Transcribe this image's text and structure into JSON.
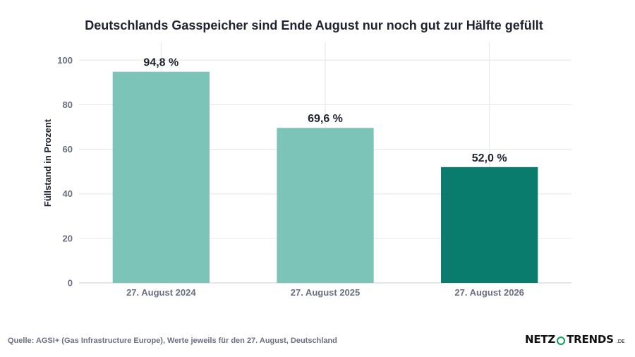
{
  "chart_data": {
    "type": "bar",
    "title": "Deutschlands Gasspeicher sind Ende August nur noch gut zur Hälfte gefüllt",
    "ylabel": "Füllstand in Prozent",
    "xlabel": "",
    "ylim": [
      0,
      108
    ],
    "yticks": [
      0,
      20,
      40,
      60,
      80,
      100
    ],
    "grid": true,
    "categories": [
      "27. August 2024",
      "27. August 2025",
      "27. August 2026"
    ],
    "values": [
      94.8,
      69.6,
      52.0
    ],
    "data_labels": [
      "94,8 %",
      "69,6 %",
      "52,0 %"
    ],
    "colors": [
      "#7cc4b8",
      "#7cc4b8",
      "#0a7c6e"
    ]
  },
  "source": "Quelle: AGSI+ (Gas Infrastructure Europe), Werte jeweils für den 27. August, Deutschland",
  "logo": {
    "left": "NETZ",
    "right": "TRENDS",
    "suffix": ".DE",
    "ring_color": "#0aa055"
  }
}
